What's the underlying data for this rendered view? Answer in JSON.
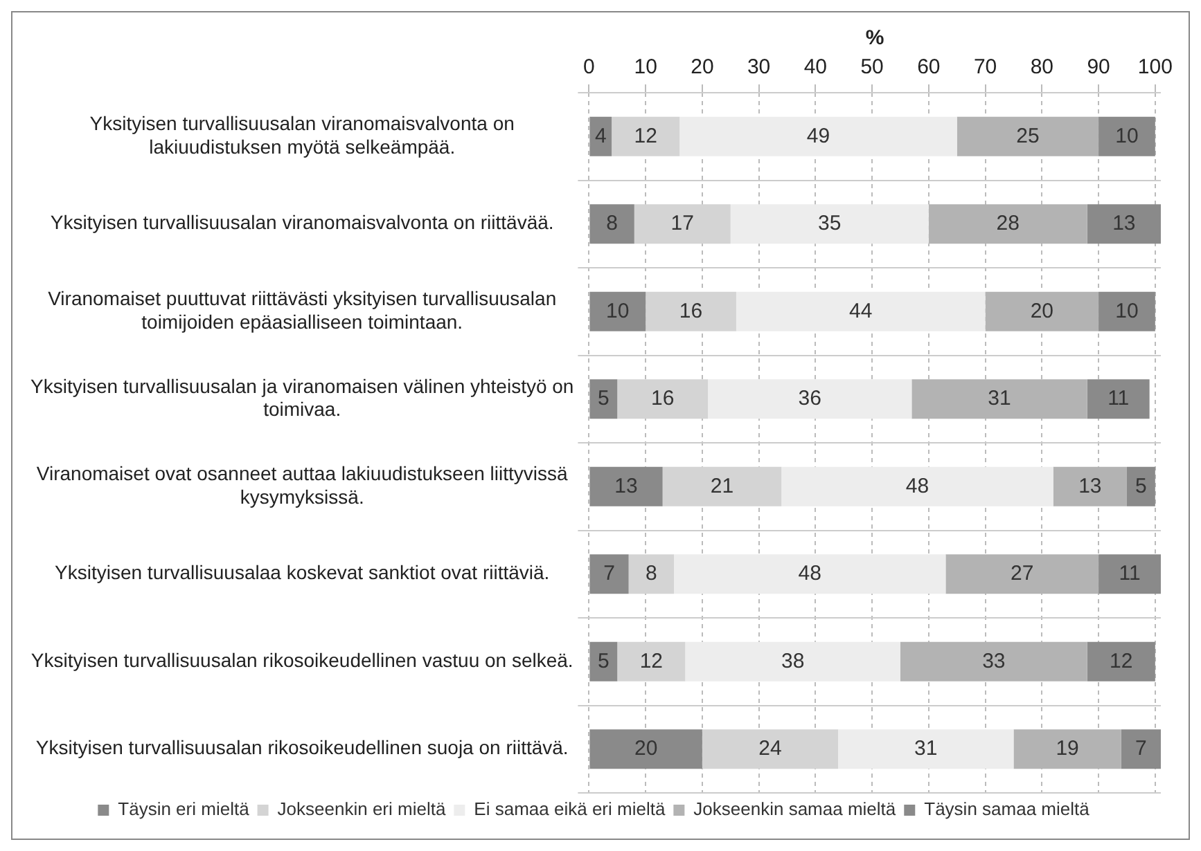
{
  "chart_data": {
    "type": "bar",
    "orientation": "horizontal",
    "stacked": true,
    "xlabel": "%",
    "categories": [
      "Yksityisen turvallisuusalan viranomaisvalvonta on lakiuudistuksen myötä selkeämpää.",
      "Yksityisen turvallisuusalan viranomaisvalvonta on riittävää.",
      "Viranomaiset puuttuvat riittävästi yksityisen turvallisuusalan toimijoiden epäasialliseen toimintaan.",
      "Yksityisen turvallisuusalan ja viranomaisen välinen yhteistyö on toimivaa.",
      "Viranomaiset ovat osanneet auttaa lakiuudistukseen liittyvissä kysymyksissä.",
      "Yksityisen turvallisuusalaa koskevat sanktiot ovat riittäviä.",
      "Yksityisen turvallisuusalan rikosoikeudellinen vastuu on selkeä.",
      "Yksityisen turvallisuusalan rikosoikeudellinen suoja on riittävä."
    ],
    "series": [
      {
        "name": "Täysin eri mieltä",
        "color": "#8a8a8a",
        "values": [
          4,
          8,
          10,
          5,
          13,
          7,
          5,
          20
        ]
      },
      {
        "name": "Jokseenkin eri mieltä",
        "color": "#d4d4d4",
        "values": [
          12,
          17,
          16,
          16,
          21,
          8,
          12,
          24
        ]
      },
      {
        "name": "Ei samaa eikä eri mieltä",
        "color": "#ededed",
        "values": [
          49,
          35,
          44,
          36,
          48,
          48,
          38,
          31
        ]
      },
      {
        "name": "Jokseenkin samaa mieltä",
        "color": "#b3b3b3",
        "values": [
          25,
          28,
          20,
          31,
          13,
          27,
          33,
          19
        ]
      },
      {
        "name": "Täysin samaa mieltä",
        "color": "#8a8a8a",
        "values": [
          10,
          13,
          10,
          11,
          5,
          11,
          12,
          7
        ]
      }
    ],
    "xlim": [
      0,
      101
    ],
    "xticks": [
      0,
      10,
      20,
      30,
      40,
      50,
      60,
      70,
      80,
      90,
      100
    ],
    "grid": true,
    "legend": "bottom",
    "data_labels": true
  }
}
